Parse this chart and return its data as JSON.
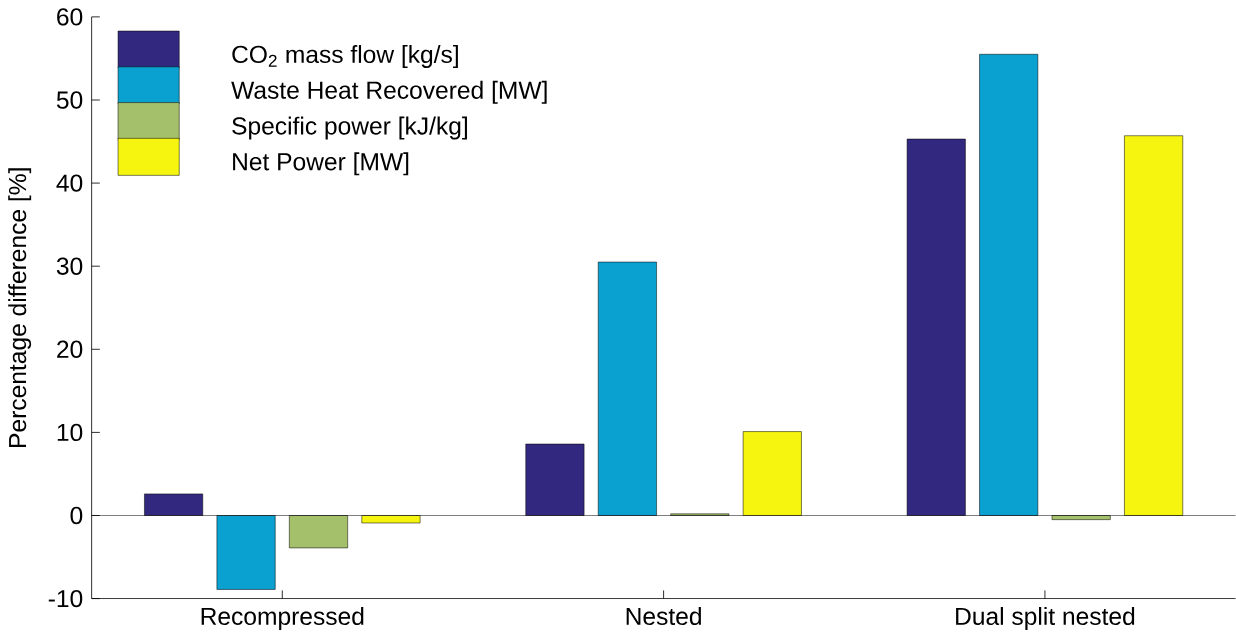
{
  "chart_data": {
    "type": "bar",
    "ylabel": "Percentage difference [%]",
    "categories": [
      "Recompressed",
      "Nested",
      "Dual split nested"
    ],
    "series": [
      {
        "name": "CO$_{2}$ mass flow [kg/s]",
        "color": "#33287f",
        "values": [
          2.6,
          8.6,
          45.3
        ]
      },
      {
        "name": "Waste Heat Recovered [MW]",
        "color": "#0aa0d0",
        "values": [
          -8.9,
          30.5,
          55.5
        ]
      },
      {
        "name": "Specific power [kJ/kg]",
        "color": "#a5c06a",
        "values": [
          -3.9,
          0.2,
          -0.5
        ]
      },
      {
        "name": "Net Power [MW]",
        "color": "#f5f50f",
        "values": [
          -0.9,
          10.1,
          45.7
        ]
      }
    ],
    "ylim": [
      -10,
      60
    ],
    "yticks": [
      -10,
      0,
      10,
      20,
      30,
      40,
      50,
      60
    ],
    "ref_lines": [
      {
        "axis": "y",
        "value": 0
      }
    ],
    "legend": "top left"
  }
}
